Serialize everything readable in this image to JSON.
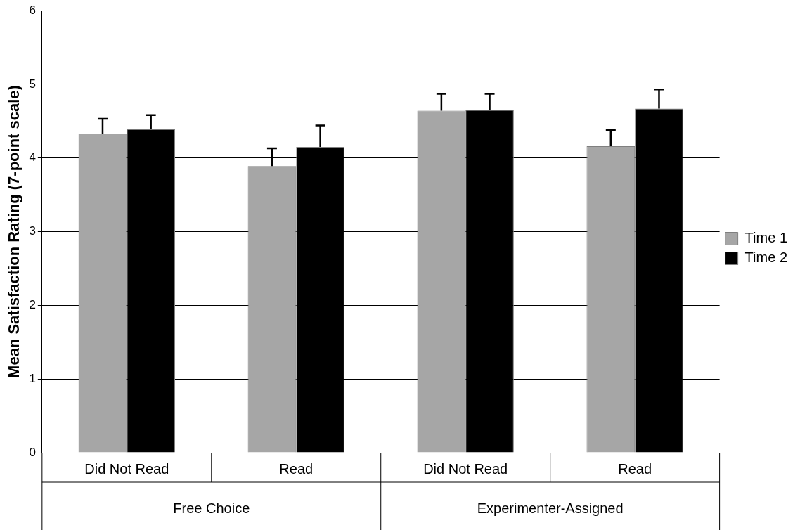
{
  "chart_data": {
    "type": "bar",
    "ylabel": "Mean Satisfaction Rating (7-point scale)",
    "categories": [
      "Did Not Read",
      "Read",
      "Did Not Read",
      "Read"
    ],
    "series": [
      {
        "name": "Time 1",
        "color": "#a6a6a6",
        "values": [
          4.33,
          3.89,
          4.64,
          4.16
        ],
        "errors": [
          0.2,
          0.24,
          0.23,
          0.22
        ]
      },
      {
        "name": "Time 2",
        "color": "#000000",
        "values": [
          4.39,
          4.15,
          4.65,
          4.67
        ],
        "errors": [
          0.19,
          0.29,
          0.22,
          0.26
        ]
      }
    ],
    "annotations": [
      "Free Choice",
      "Experimenter-Assigned"
    ],
    "ylim": [
      0,
      6
    ],
    "yticks": [
      0,
      1,
      2,
      3,
      4,
      5,
      6
    ],
    "grid": "y",
    "legend": "right"
  }
}
